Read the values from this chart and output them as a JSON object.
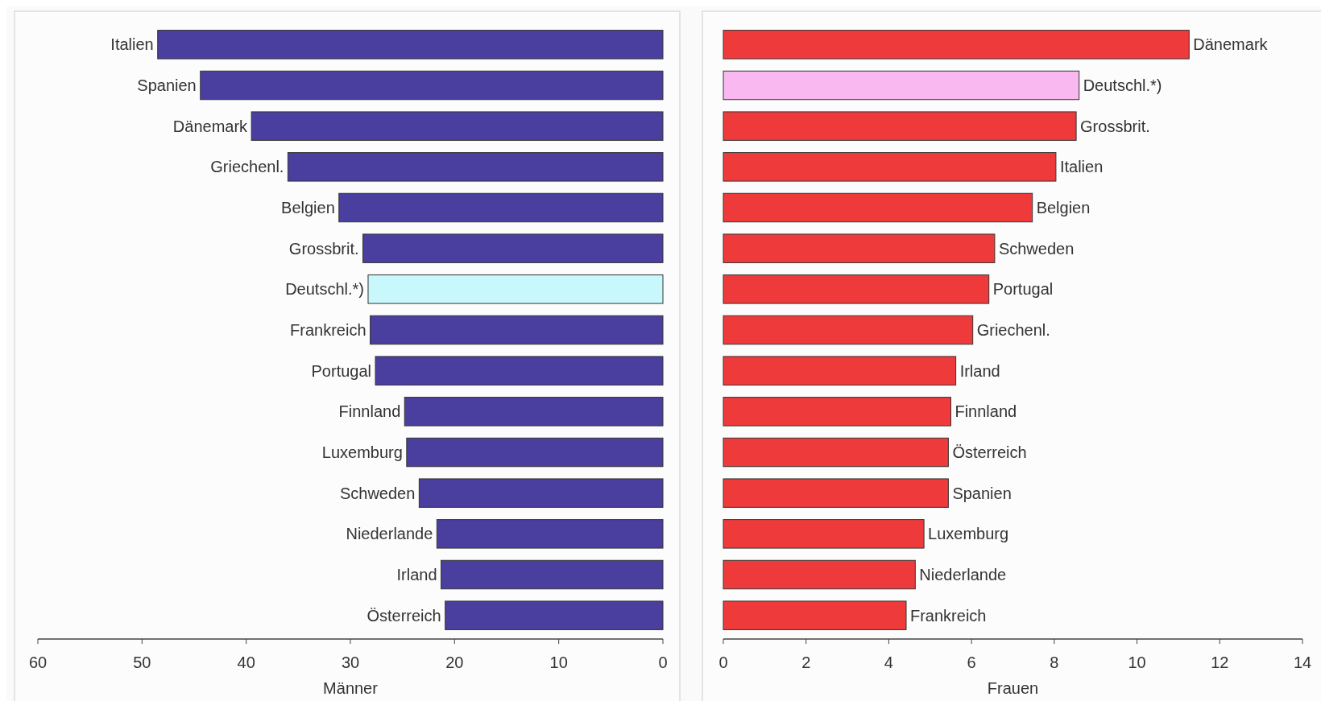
{
  "chart_data": [
    {
      "type": "bar",
      "orientation": "horizontal",
      "xlabel": "Männer",
      "categories": [
        "Italien",
        "Spanien",
        "Dänemark",
        "Griechenl.",
        "Belgien",
        "Grossbrit.",
        "Deutschl.*)",
        "Frankreich",
        "Portugal",
        "Finnland",
        "Luxemburg",
        "Schweden",
        "Niederlande",
        "Irland",
        "Österreich"
      ],
      "values": [
        48.5,
        44.4,
        39.5,
        36.0,
        31.1,
        28.8,
        28.3,
        28.1,
        27.6,
        24.8,
        24.6,
        23.4,
        21.7,
        21.3,
        20.9
      ],
      "colors": [
        "#4a3f9e",
        "#4a3f9e",
        "#4a3f9e",
        "#4a3f9e",
        "#4a3f9e",
        "#4a3f9e",
        "#c8f8fb",
        "#4a3f9e",
        "#4a3f9e",
        "#4a3f9e",
        "#4a3f9e",
        "#4a3f9e",
        "#4a3f9e",
        "#4a3f9e",
        "#4a3f9e"
      ],
      "xlim": [
        60,
        0
      ],
      "xticks": [
        60,
        50,
        40,
        30,
        20,
        10,
        0
      ]
    },
    {
      "type": "bar",
      "orientation": "horizontal",
      "xlabel": "Frauen",
      "categories": [
        "Dänemark",
        "Deutschl.*)",
        "Grossbrit.",
        "Italien",
        "Belgien",
        "Schweden",
        "Portugal",
        "Griechenl.",
        "Irland",
        "Finnland",
        "Österreich",
        "Spanien",
        "Luxemburg",
        "Niederlande",
        "Frankreich"
      ],
      "values": [
        11.26,
        8.6,
        8.53,
        8.04,
        7.47,
        6.56,
        6.42,
        6.03,
        5.62,
        5.5,
        5.44,
        5.44,
        4.85,
        4.64,
        4.42
      ],
      "colors": [
        "#ee3a3a",
        "#f9b8f0",
        "#ee3a3a",
        "#ee3a3a",
        "#ee3a3a",
        "#ee3a3a",
        "#ee3a3a",
        "#ee3a3a",
        "#ee3a3a",
        "#ee3a3a",
        "#ee3a3a",
        "#ee3a3a",
        "#ee3a3a",
        "#ee3a3a",
        "#ee3a3a"
      ],
      "xlim": [
        0,
        14
      ],
      "xticks": [
        0,
        2,
        4,
        6,
        8,
        10,
        12,
        14
      ]
    }
  ]
}
